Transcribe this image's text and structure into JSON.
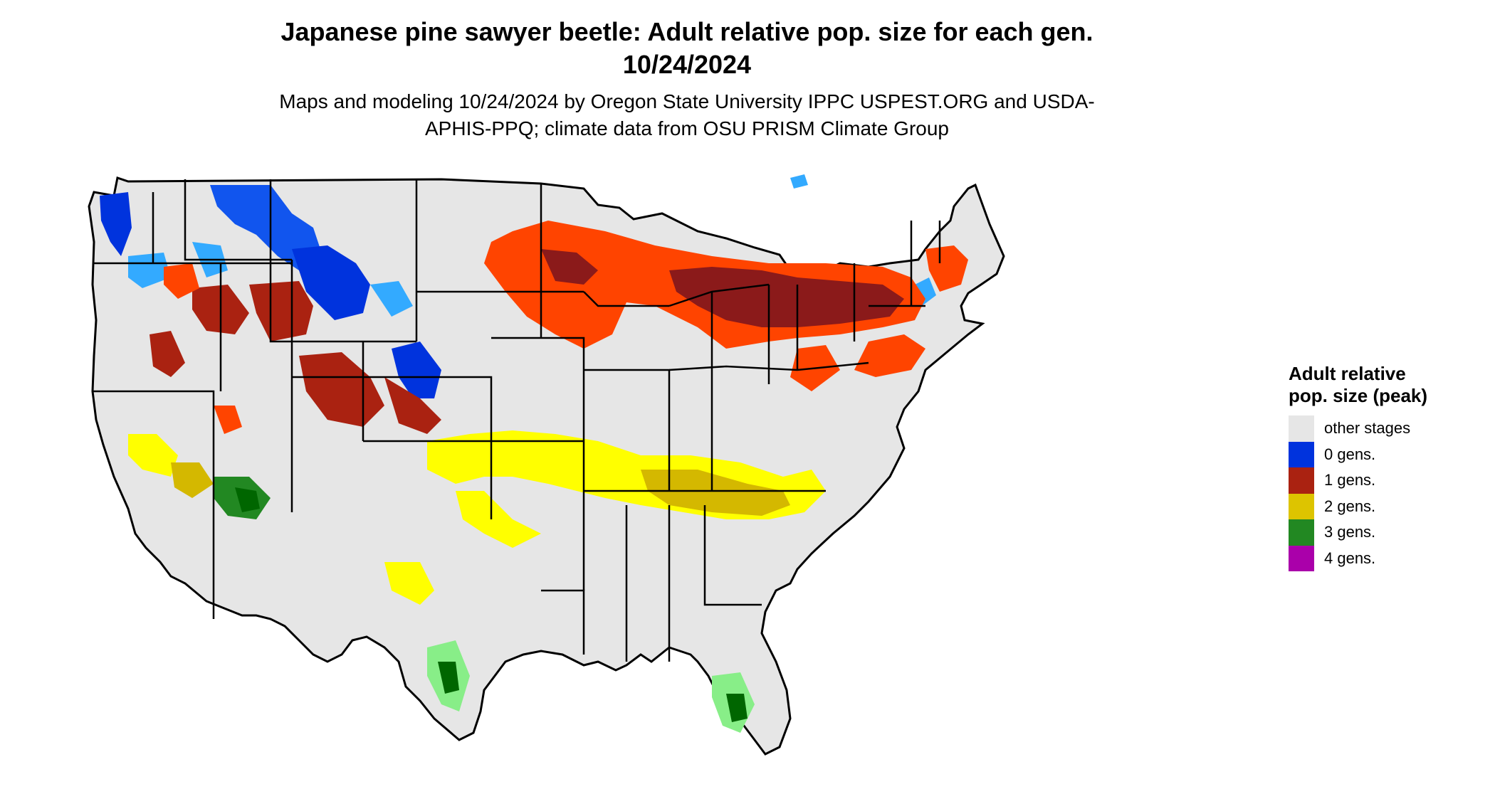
{
  "title": "Japanese pine sawyer beetle: Adult relative pop. size for each gen. 10/24/2024",
  "subtitle": "Maps and modeling 10/24/2024 by Oregon State University IPPC USPEST.ORG and USDA-APHIS-PPQ; climate data from OSU PRISM Climate Group",
  "legend": {
    "title": "Adult relative pop. size (peak)",
    "items": [
      {
        "label": "other stages",
        "color": "#e6e6e6"
      },
      {
        "label": "0 gens.",
        "color": "#0033dd"
      },
      {
        "label": "1 gens.",
        "color": "#aa2211"
      },
      {
        "label": "2 gens.",
        "color": "#ddc400"
      },
      {
        "label": "3 gens.",
        "color": "#228822"
      },
      {
        "label": "4 gens.",
        "color": "#aa00aa"
      }
    ]
  },
  "colors": {
    "background_land": "#e6e6e6",
    "light_blue": "#33aaff",
    "orange_red": "#ff4400",
    "dark_red": "#8b1a1a",
    "yellow": "#ffff00",
    "dark_yellow": "#d4b800",
    "light_green": "#88ee88",
    "dark_green": "#006600"
  }
}
